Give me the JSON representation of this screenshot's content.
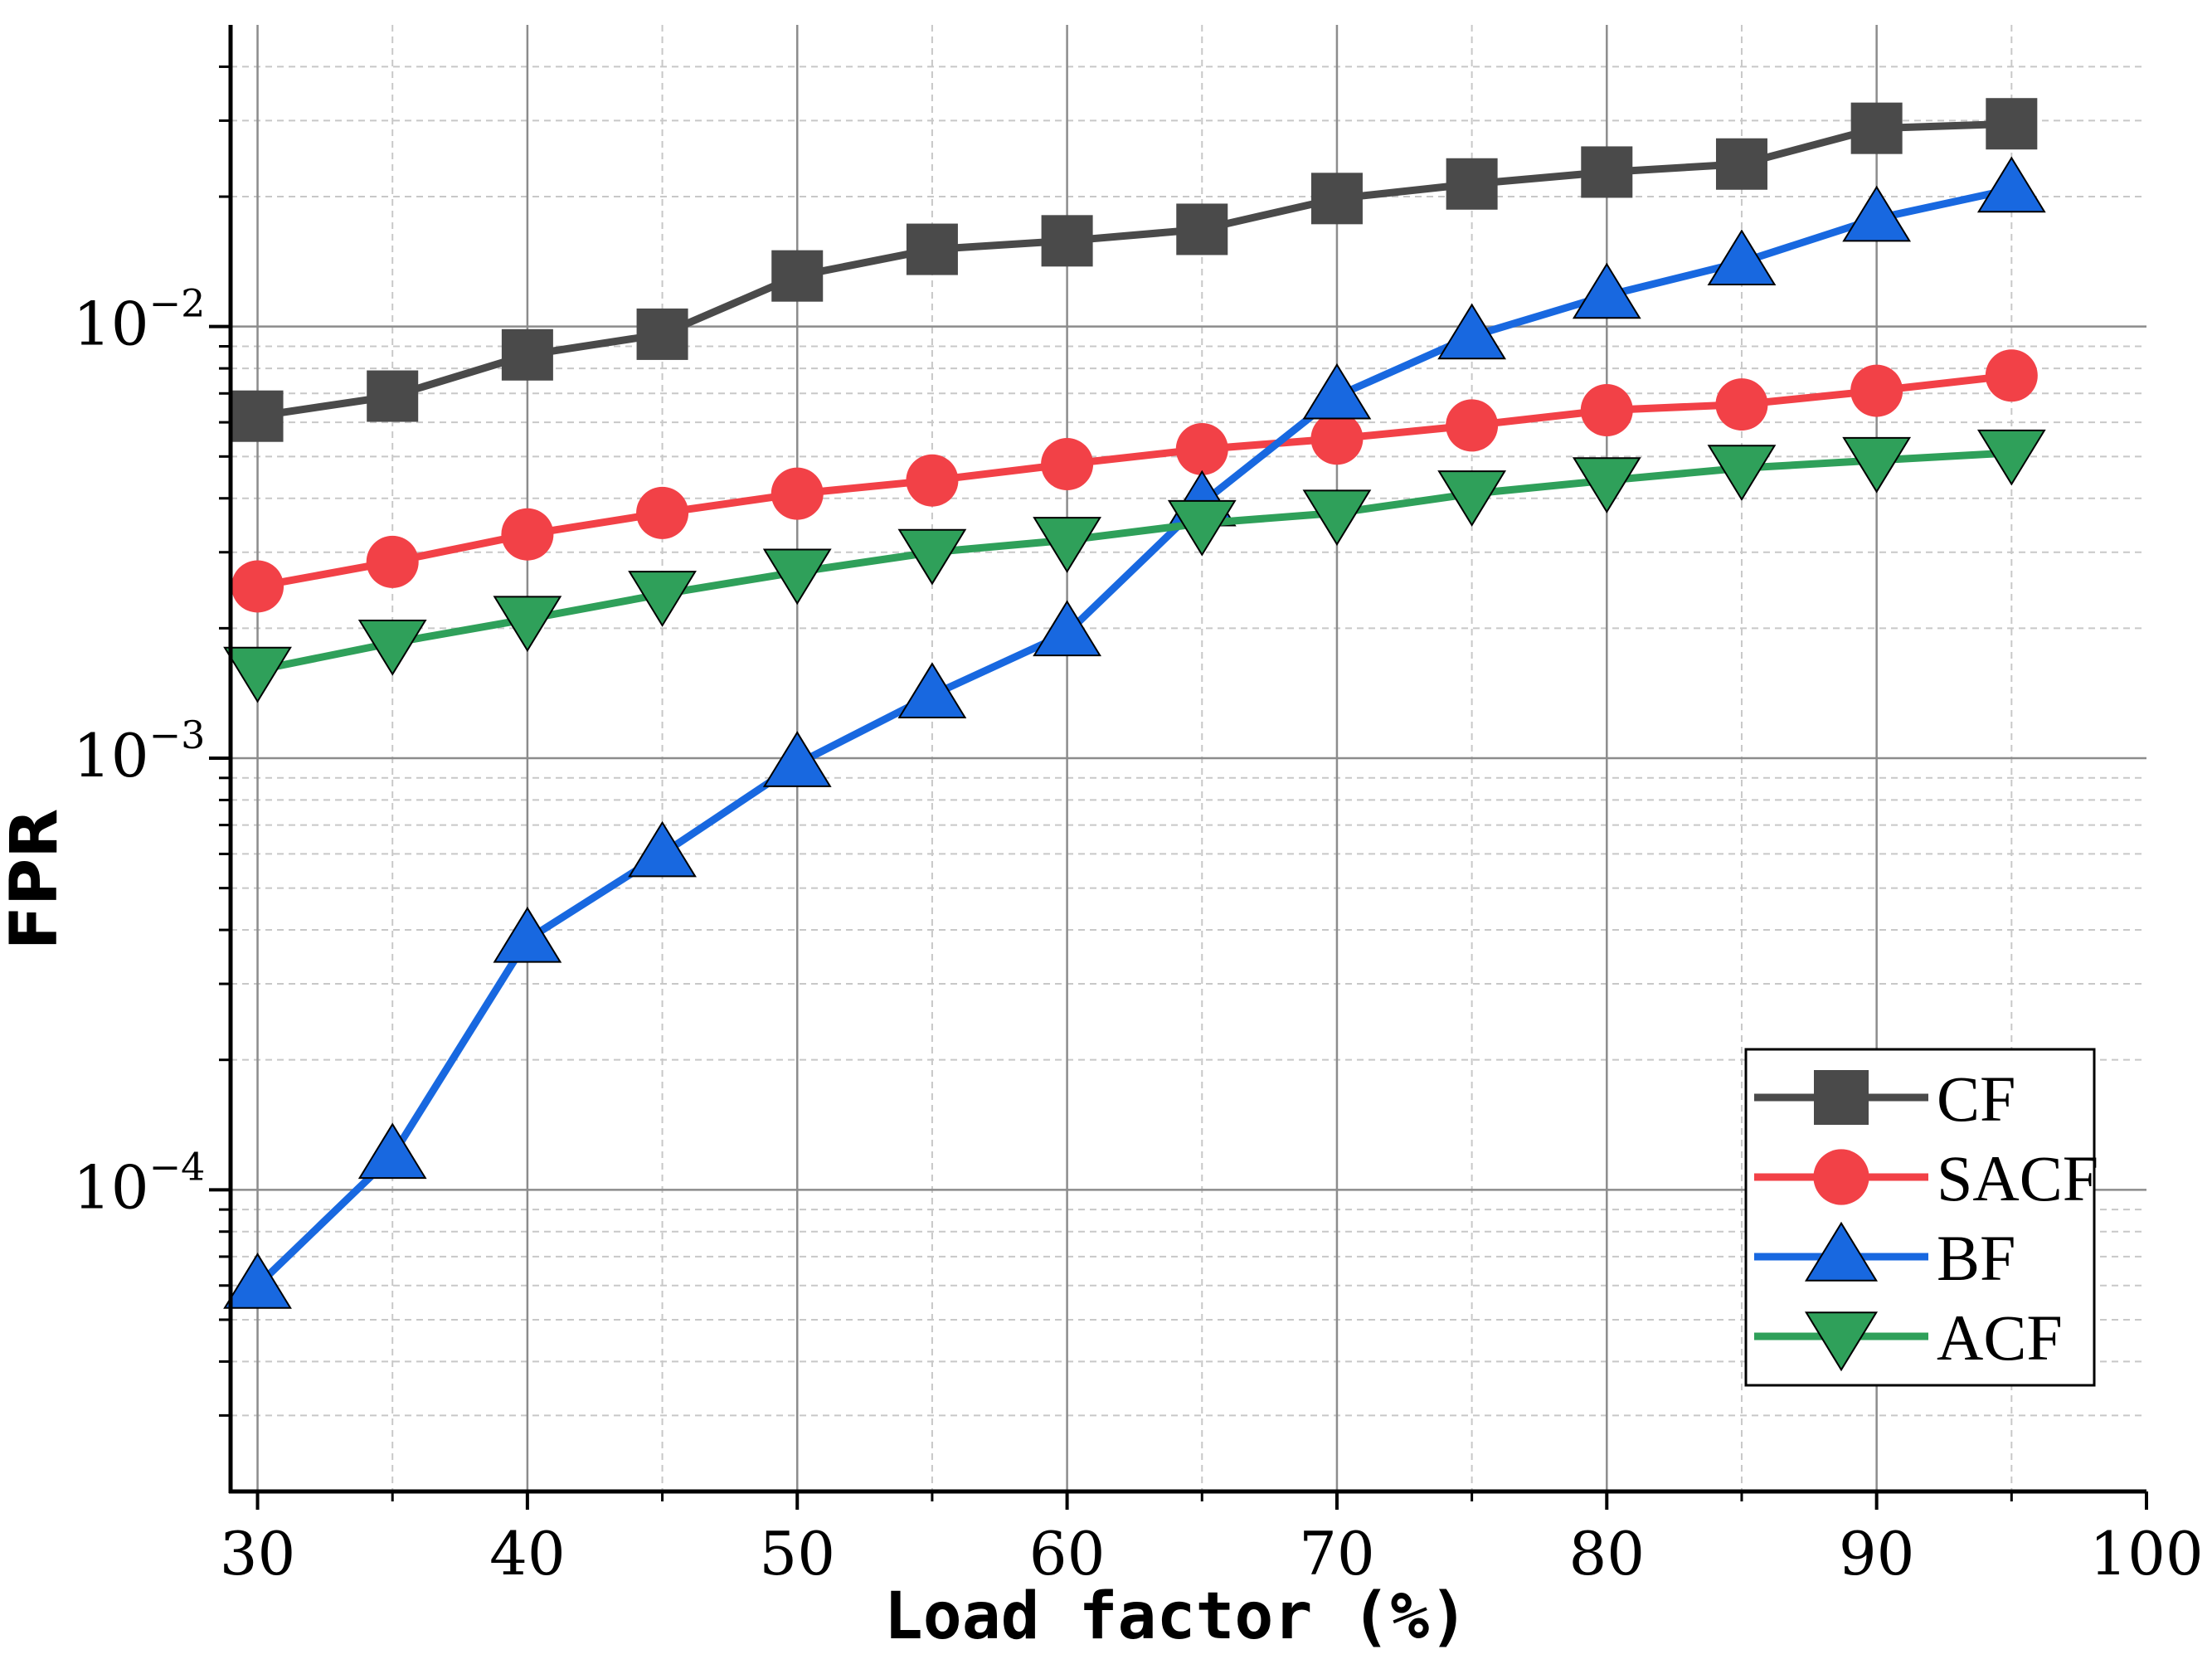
{
  "chart_data": {
    "type": "line",
    "title": "",
    "xlabel": "Load factor (%)",
    "ylabel": "FPR",
    "x": [
      30,
      35,
      40,
      45,
      50,
      55,
      60,
      65,
      70,
      75,
      80,
      85,
      90,
      95
    ],
    "xlim": [
      29,
      100
    ],
    "xticks": [
      30,
      40,
      50,
      60,
      70,
      80,
      90,
      100
    ],
    "yscale": "log",
    "ylim": [
      2e-05,
      0.05
    ],
    "yticks": [
      {
        "value": 0.0001,
        "base": "10",
        "exp": "−4"
      },
      {
        "value": 0.001,
        "base": "10",
        "exp": "−3"
      },
      {
        "value": 0.01,
        "base": "10",
        "exp": "−2"
      }
    ],
    "grid": true,
    "legend_position": "bottom-right",
    "series": [
      {
        "name": "CF",
        "color": "#4a4a4a",
        "marker": "square",
        "values": [
          0.0062,
          0.0069,
          0.0086,
          0.0096,
          0.0131,
          0.0151,
          0.0158,
          0.0168,
          0.0198,
          0.0214,
          0.0228,
          0.0238,
          0.0288,
          0.0295
        ]
      },
      {
        "name": "SACF",
        "color": "#f24147",
        "marker": "circle",
        "values": [
          0.0025,
          0.00285,
          0.0033,
          0.0037,
          0.0041,
          0.0044,
          0.0048,
          0.0052,
          0.0055,
          0.0059,
          0.0064,
          0.0066,
          0.0071,
          0.0077
        ]
      },
      {
        "name": "BF",
        "color": "#1868e0",
        "marker": "triangle-up",
        "values": [
          6e-05,
          0.00012,
          0.00038,
          0.0006,
          0.00097,
          0.0014,
          0.00195,
          0.0039,
          0.0069,
          0.0095,
          0.0118,
          0.0141,
          0.0178,
          0.0208
        ]
      },
      {
        "name": "ACF",
        "color": "#2fa05a",
        "marker": "triangle-down",
        "values": [
          0.0016,
          0.00185,
          0.0021,
          0.0024,
          0.0027,
          0.003,
          0.0032,
          0.0035,
          0.0037,
          0.0041,
          0.0044,
          0.0047,
          0.0049,
          0.0051
        ]
      }
    ]
  }
}
